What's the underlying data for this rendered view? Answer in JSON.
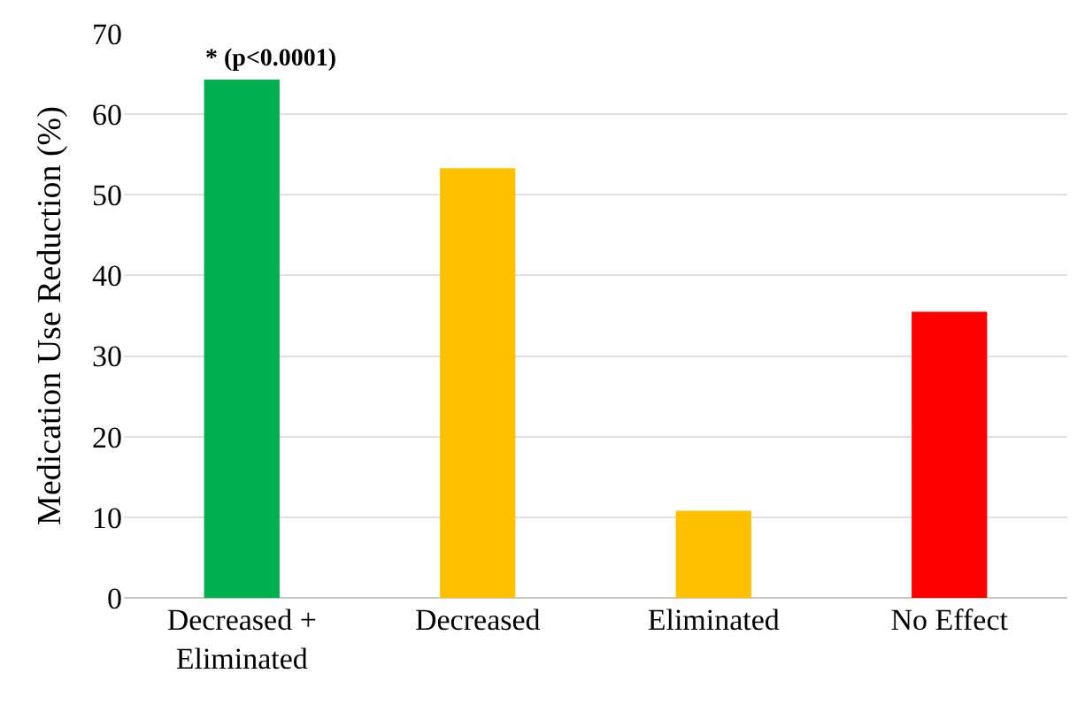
{
  "chart_data": {
    "type": "bar",
    "ylabel": "Medication Use Reduction (%)",
    "categories": [
      "Decreased +\nEliminated",
      "Decreased",
      "Eliminated",
      "No Effect"
    ],
    "values": [
      64.3,
      53.3,
      10.8,
      35.5
    ],
    "colors": [
      "#00b050",
      "#ffc000",
      "#ffc000",
      "#ff0000"
    ],
    "ylim": [
      0,
      70
    ],
    "yticks": [
      0,
      10,
      20,
      30,
      40,
      50,
      60,
      70
    ],
    "grid": "y",
    "annotations": [
      "* (p<0.0001)"
    ]
  }
}
